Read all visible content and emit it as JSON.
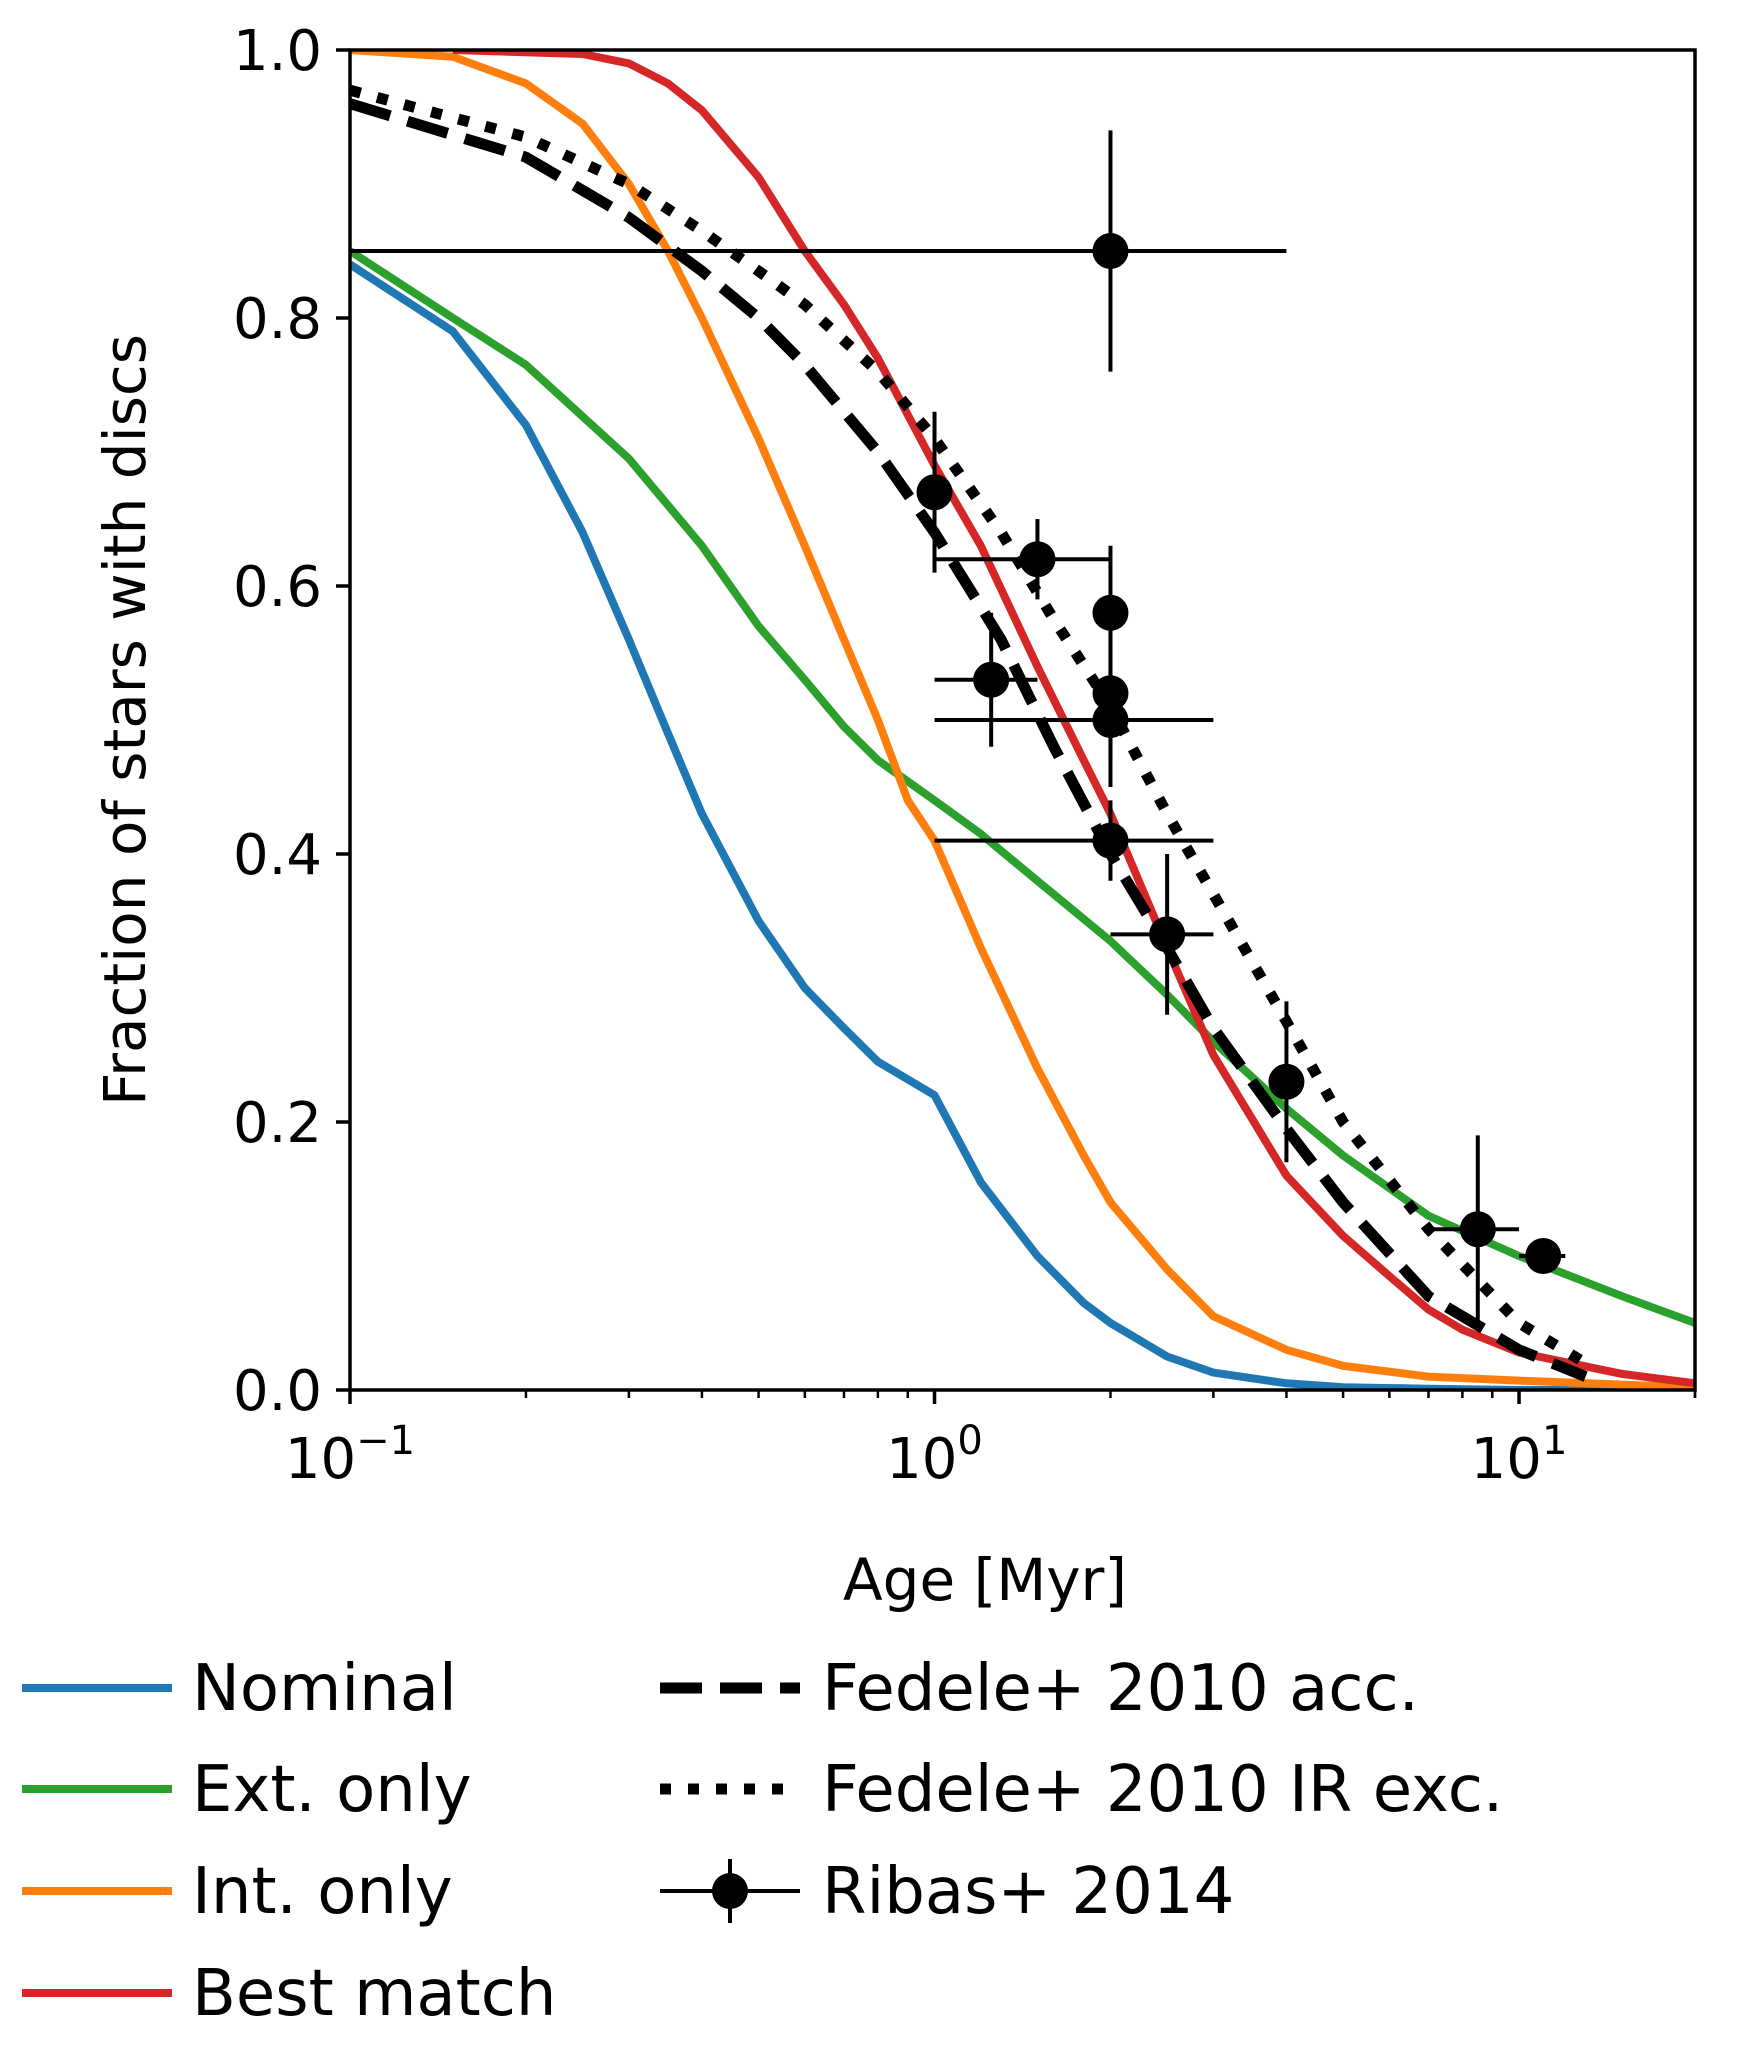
{
  "chart_data": {
    "type": "line",
    "title": "",
    "xlabel": "Age [Myr]",
    "ylabel": "Fraction of stars with discs",
    "xscale": "log",
    "xlim": [
      0.1,
      20
    ],
    "ylim": [
      0.0,
      1.0
    ],
    "grid": false,
    "legend_placement": "below",
    "x_tick_labels": [
      {
        "value": 0.1,
        "base": "10",
        "exp": "−1"
      },
      {
        "value": 1,
        "base": "10",
        "exp": "0"
      },
      {
        "value": 10,
        "base": "10",
        "exp": "1"
      }
    ],
    "y_ticks": [
      {
        "value": 0.0,
        "label": "0.0"
      },
      {
        "value": 0.2,
        "label": "0.2"
      },
      {
        "value": 0.4,
        "label": "0.4"
      },
      {
        "value": 0.6,
        "label": "0.6"
      },
      {
        "value": 0.8,
        "label": "0.8"
      },
      {
        "value": 1.0,
        "label": "1.0"
      }
    ],
    "series": [
      {
        "name": "Nominal",
        "color": "#1f77b4",
        "style": "solid",
        "x": [
          0.1,
          0.15,
          0.2,
          0.25,
          0.3,
          0.35,
          0.4,
          0.5,
          0.6,
          0.7,
          0.8,
          1.0,
          1.2,
          1.5,
          1.8,
          2.0,
          2.5,
          3.0,
          4.0,
          5.0,
          7.0,
          10.0,
          15.0,
          20.0
        ],
        "y": [
          0.84,
          0.79,
          0.72,
          0.64,
          0.56,
          0.49,
          0.43,
          0.35,
          0.3,
          0.27,
          0.245,
          0.22,
          0.155,
          0.1,
          0.065,
          0.05,
          0.025,
          0.013,
          0.005,
          0.002,
          0.001,
          0.0,
          0.0,
          0.0
        ]
      },
      {
        "name": "Ext. only",
        "color": "#2ca02c",
        "style": "solid",
        "x": [
          0.1,
          0.15,
          0.2,
          0.3,
          0.4,
          0.5,
          0.6,
          0.7,
          0.8,
          1.0,
          1.2,
          1.5,
          2.0,
          2.5,
          3.0,
          4.0,
          5.0,
          7.0,
          10.0,
          15.0,
          20.0
        ],
        "y": [
          0.85,
          0.8,
          0.765,
          0.695,
          0.63,
          0.57,
          0.53,
          0.495,
          0.47,
          0.44,
          0.415,
          0.38,
          0.335,
          0.295,
          0.26,
          0.21,
          0.175,
          0.13,
          0.1,
          0.07,
          0.05
        ]
      },
      {
        "name": "Int. only",
        "color": "#ff7f0e",
        "style": "solid",
        "x": [
          0.1,
          0.15,
          0.2,
          0.25,
          0.3,
          0.35,
          0.4,
          0.5,
          0.6,
          0.7,
          0.8,
          0.9,
          1.0,
          1.2,
          1.5,
          1.8,
          2.0,
          2.5,
          3.0,
          4.0,
          5.0,
          7.0,
          10.0,
          15.0,
          20.0
        ],
        "y": [
          1.0,
          0.995,
          0.975,
          0.945,
          0.9,
          0.85,
          0.8,
          0.71,
          0.63,
          0.56,
          0.5,
          0.44,
          0.41,
          0.33,
          0.24,
          0.175,
          0.14,
          0.09,
          0.055,
          0.03,
          0.018,
          0.01,
          0.007,
          0.004,
          0.002
        ]
      },
      {
        "name": "Best match",
        "color": "#d62728",
        "style": "solid",
        "x": [
          0.15,
          0.25,
          0.3,
          0.35,
          0.4,
          0.5,
          0.6,
          0.7,
          0.8,
          1.0,
          1.2,
          1.5,
          1.8,
          2.0,
          2.5,
          3.0,
          4.0,
          5.0,
          6.0,
          7.0,
          8.0,
          10.0,
          15.0,
          20.0
        ],
        "y": [
          1.0,
          0.997,
          0.99,
          0.975,
          0.955,
          0.905,
          0.85,
          0.81,
          0.77,
          0.69,
          0.63,
          0.54,
          0.47,
          0.43,
          0.33,
          0.25,
          0.16,
          0.115,
          0.085,
          0.06,
          0.045,
          0.028,
          0.012,
          0.005
        ]
      },
      {
        "name": "Fedele+ 2010 acc.",
        "color": "#000000",
        "style": "dashed",
        "x": [
          0.1,
          0.2,
          0.3,
          0.4,
          0.5,
          0.6,
          0.8,
          1.0,
          1.3,
          1.6,
          2.0,
          2.5,
          3.0,
          4.0,
          5.0,
          7.0,
          10.0,
          13.0
        ],
        "y": [
          0.96,
          0.92,
          0.875,
          0.835,
          0.8,
          0.765,
          0.7,
          0.64,
          0.56,
          0.48,
          0.4,
          0.33,
          0.27,
          0.195,
          0.14,
          0.07,
          0.03,
          0.01
        ]
      },
      {
        "name": "Fedele+ 2010 IR exc.",
        "color": "#000000",
        "style": "dotted",
        "x": [
          0.1,
          0.2,
          0.3,
          0.4,
          0.5,
          0.6,
          0.8,
          1.0,
          1.3,
          1.6,
          2.0,
          2.5,
          3.0,
          4.0,
          5.0,
          7.0,
          10.0,
          13.0
        ],
        "y": [
          0.97,
          0.935,
          0.9,
          0.865,
          0.835,
          0.81,
          0.76,
          0.71,
          0.64,
          0.575,
          0.51,
          0.43,
          0.37,
          0.275,
          0.2,
          0.12,
          0.05,
          0.02
        ]
      }
    ],
    "errorbars": {
      "name": "Ribas+ 2014",
      "color": "#000000",
      "points": [
        {
          "x": 2.0,
          "y": 0.85,
          "xerr": [
            0.1,
            4.0
          ],
          "yerr": [
            0.76,
            0.94
          ]
        },
        {
          "x": 1.0,
          "y": 0.67,
          "xerr": [
            1.0,
            1.0
          ],
          "yerr": [
            0.61,
            0.73
          ]
        },
        {
          "x": 1.5,
          "y": 0.62,
          "xerr": [
            1.0,
            2.0
          ],
          "yerr": [
            0.59,
            0.65
          ]
        },
        {
          "x": 2.0,
          "y": 0.58,
          "xerr": [
            2.0,
            2.0
          ],
          "yerr": [
            0.53,
            0.63
          ]
        },
        {
          "x": 1.25,
          "y": 0.53,
          "xerr": [
            1.0,
            1.5
          ],
          "yerr": [
            0.48,
            0.58
          ]
        },
        {
          "x": 2.0,
          "y": 0.52,
          "xerr": [
            2.0,
            2.0
          ],
          "yerr": [
            0.47,
            0.57
          ]
        },
        {
          "x": 2.0,
          "y": 0.5,
          "xerr": [
            1.0,
            3.0
          ],
          "yerr": [
            0.45,
            0.55
          ]
        },
        {
          "x": 2.0,
          "y": 0.41,
          "xerr": [
            1.0,
            3.0
          ],
          "yerr": [
            0.38,
            0.44
          ]
        },
        {
          "x": 2.5,
          "y": 0.34,
          "xerr": [
            2.0,
            3.0
          ],
          "yerr": [
            0.28,
            0.4
          ]
        },
        {
          "x": 4.0,
          "y": 0.23,
          "xerr": [
            4.0,
            4.0
          ],
          "yerr": [
            0.17,
            0.29
          ]
        },
        {
          "x": 8.5,
          "y": 0.12,
          "xerr": [
            7.0,
            10.0
          ],
          "yerr": [
            0.05,
            0.19
          ]
        },
        {
          "x": 11.0,
          "y": 0.1,
          "xerr": [
            10.0,
            12.0
          ],
          "yerr": [
            0.1,
            0.1
          ]
        }
      ]
    },
    "legend": [
      {
        "label": "Nominal",
        "kind": "line",
        "color": "#1f77b4",
        "style": "solid"
      },
      {
        "label": "Ext. only",
        "kind": "line",
        "color": "#2ca02c",
        "style": "solid"
      },
      {
        "label": "Int. only",
        "kind": "line",
        "color": "#ff7f0e",
        "style": "solid"
      },
      {
        "label": "Best match",
        "kind": "line",
        "color": "#d62728",
        "style": "solid"
      },
      {
        "label": "Fedele+ 2010 acc.",
        "kind": "line",
        "color": "#000000",
        "style": "dashed"
      },
      {
        "label": "Fedele+ 2010 IR exc.",
        "kind": "line",
        "color": "#000000",
        "style": "dotted"
      },
      {
        "label": "Ribas+ 2014",
        "kind": "errorbar",
        "color": "#000000",
        "style": "solid"
      }
    ]
  }
}
